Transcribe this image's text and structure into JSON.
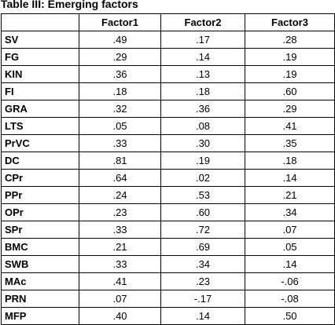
{
  "table": {
    "caption": "Table III: Emerging factors",
    "columns": [
      "",
      "Factor1",
      "Factor2",
      "Factor3"
    ],
    "rows": [
      {
        "label": "SV",
        "values": [
          ".49",
          ".17",
          ".28"
        ]
      },
      {
        "label": "FG",
        "values": [
          ".29",
          ".14",
          ".19"
        ]
      },
      {
        "label": "KIN",
        "values": [
          ".36",
          ".13",
          ".19"
        ]
      },
      {
        "label": "FI",
        "values": [
          ".18",
          ".18",
          ".60"
        ]
      },
      {
        "label": "GRA",
        "values": [
          ".32",
          ".36",
          ".29"
        ]
      },
      {
        "label": "LTS",
        "values": [
          ".05",
          ".08",
          ".41"
        ]
      },
      {
        "label": "PrVC",
        "values": [
          ".33",
          ".30",
          ".35"
        ]
      },
      {
        "label": "DC",
        "values": [
          ".81",
          ".19",
          ".18"
        ]
      },
      {
        "label": "CPr",
        "values": [
          ".64",
          ".02",
          ".14"
        ]
      },
      {
        "label": "PPr",
        "values": [
          ".24",
          ".53",
          ".21"
        ]
      },
      {
        "label": "OPr",
        "values": [
          ".23",
          ".60",
          ".34"
        ]
      },
      {
        "label": "SPr",
        "values": [
          ".33",
          ".72",
          ".07"
        ]
      },
      {
        "label": "BMC",
        "values": [
          ".21",
          ".69",
          ".05"
        ]
      },
      {
        "label": "SWB",
        "values": [
          ".33",
          ".34",
          ".14"
        ]
      },
      {
        "label": "MAc",
        "values": [
          ".41",
          ".23",
          "-.06"
        ]
      },
      {
        "label": "PRN",
        "values": [
          ".07",
          "-.17",
          "-.08"
        ]
      },
      {
        "label": "MFP",
        "values": [
          ".40",
          ".14",
          ".50"
        ]
      }
    ]
  }
}
